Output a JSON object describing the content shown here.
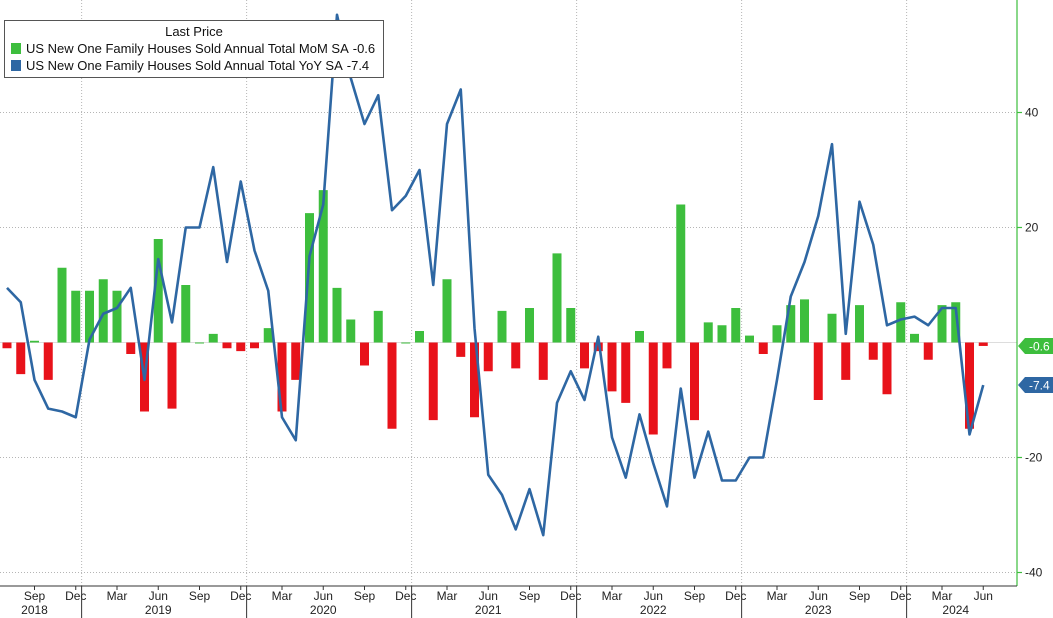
{
  "chart_data": {
    "type": "bar+line",
    "legend": {
      "title": "Last Price",
      "placement": "top-left",
      "entries": [
        {
          "name": "US New One Family Houses Sold Annual Total MoM SA",
          "last": "-0.6",
          "color": "#3dbe3d"
        },
        {
          "name": "US New One Family Houses Sold Annual Total YoY SA",
          "last": "-7.4",
          "color": "#2e67a3"
        }
      ]
    },
    "ylim": [
      -40,
      58
    ],
    "yticks": [
      40,
      20,
      -20,
      -40
    ],
    "ytick_labels": [
      "40",
      "20",
      "-20",
      "-40"
    ],
    "y_axis_position": "right",
    "gridlines": true,
    "last_value_flags": [
      {
        "series": "MoM",
        "label": "-0.6",
        "value": -0.6,
        "color": "#3dbe3d"
      },
      {
        "series": "YoY",
        "label": "-7.4",
        "value": -7.4,
        "color": "#2e67a3"
      }
    ],
    "x_start": "2018-07",
    "month_tick_labels": [
      {
        "label": "Sep",
        "index": 2
      },
      {
        "label": "Dec",
        "index": 5
      },
      {
        "label": "Mar",
        "index": 8
      },
      {
        "label": "Jun",
        "index": 11
      },
      {
        "label": "Sep",
        "index": 14
      },
      {
        "label": "Dec",
        "index": 17
      },
      {
        "label": "Mar",
        "index": 20
      },
      {
        "label": "Jun",
        "index": 23
      },
      {
        "label": "Sep",
        "index": 26
      },
      {
        "label": "Dec",
        "index": 29
      },
      {
        "label": "Mar",
        "index": 32
      },
      {
        "label": "Jun",
        "index": 35
      },
      {
        "label": "Sep",
        "index": 38
      },
      {
        "label": "Dec",
        "index": 41
      },
      {
        "label": "Mar",
        "index": 44
      },
      {
        "label": "Jun",
        "index": 47
      },
      {
        "label": "Sep",
        "index": 50
      },
      {
        "label": "Dec",
        "index": 53
      },
      {
        "label": "Mar",
        "index": 56
      },
      {
        "label": "Jun",
        "index": 59
      },
      {
        "label": "Sep",
        "index": 62
      },
      {
        "label": "Dec",
        "index": 65
      },
      {
        "label": "Mar",
        "index": 68
      },
      {
        "label": "Jun",
        "index": 71
      }
    ],
    "year_labels": [
      {
        "label": "2018",
        "index": 2
      },
      {
        "label": "2019",
        "index": 11
      },
      {
        "label": "2020",
        "index": 23
      },
      {
        "label": "2021",
        "index": 35
      },
      {
        "label": "2022",
        "index": 47
      },
      {
        "label": "2023",
        "index": 59
      },
      {
        "label": "2024",
        "index": 69
      }
    ],
    "year_separators": [
      5,
      17,
      29,
      41,
      53,
      65
    ],
    "series": [
      {
        "name": "US New One Family Houses Sold Annual Total MoM SA",
        "kind": "bar",
        "color_positive": "#3dbe3d",
        "color_negative": "#e8121a",
        "values": [
          -1,
          -5.5,
          0.3,
          -6.5,
          13,
          9,
          9,
          11,
          9,
          -2,
          -12,
          18,
          -11.5,
          10,
          0,
          1.5,
          -1,
          -1.5,
          -1,
          2.5,
          -12,
          -6.5,
          22.5,
          26.5,
          9.5,
          4,
          -4,
          5.5,
          -15,
          0,
          2,
          -13.5,
          11,
          -2.5,
          -13,
          -5,
          5.5,
          -4.5,
          6,
          -6.5,
          15.5,
          6,
          -4.5,
          -1.5,
          -8.5,
          -10.5,
          2,
          -16,
          -4.5,
          24,
          -13.5,
          3.5,
          3,
          6,
          1.2,
          -2,
          3,
          6.5,
          7.5,
          -10,
          5,
          -6.5,
          6.5,
          -3,
          -9,
          7,
          1.5,
          -3,
          6.5,
          7,
          -15,
          -0.6
        ]
      },
      {
        "name": "US New One Family Houses Sold Annual Total YoY SA",
        "kind": "line",
        "color": "#2e67a3",
        "values": [
          9.5,
          7,
          -6.5,
          -11.5,
          -12,
          -13,
          0.5,
          5,
          6,
          9.5,
          -6.5,
          14.5,
          3.5,
          20,
          20,
          30.5,
          14,
          28,
          16,
          9,
          -13,
          -17,
          15,
          24,
          57,
          46,
          38,
          43,
          23,
          25.5,
          30,
          10,
          38,
          44,
          2.5,
          -23,
          -26.5,
          -32.5,
          -25.5,
          -33.5,
          -10.5,
          -5,
          -10,
          1,
          -16.5,
          -23.5,
          -12.5,
          -21,
          -28.5,
          -8,
          -23.5,
          -15.5,
          -24,
          -24,
          -20,
          -20,
          -6.5,
          8,
          14,
          22,
          34.5,
          1.5,
          24.5,
          17,
          3,
          4,
          4.5,
          3,
          6,
          6,
          -16,
          -7.4
        ]
      }
    ]
  }
}
